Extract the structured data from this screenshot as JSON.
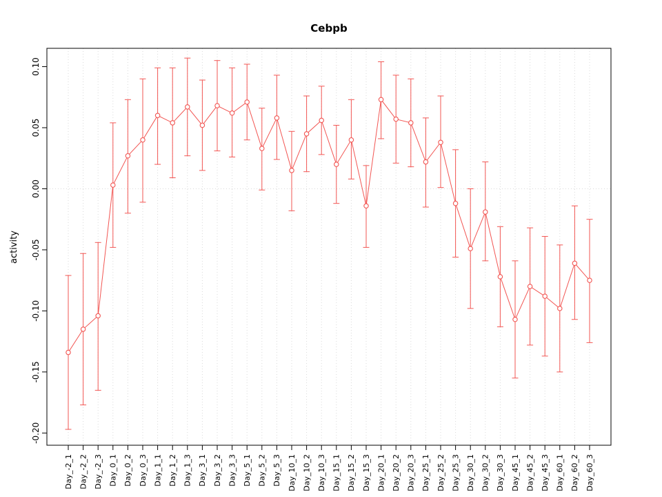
{
  "chart_data": {
    "type": "line",
    "title": "Cebpb",
    "xlabel": "",
    "ylabel": "activity",
    "legend": "none",
    "grid": "vertical dotted gridline at every category; horizontal dotted line at y=0",
    "ylim": [
      -0.21,
      0.115
    ],
    "yticks": [
      -0.2,
      -0.15,
      -0.1,
      -0.05,
      0.0,
      0.05,
      0.1
    ],
    "ytick_labels": [
      "-0.20",
      "-0.15",
      "-0.10",
      "-0.05",
      "0.00",
      "0.05",
      "0.10"
    ],
    "colors": {
      "series": "#f25552",
      "grid": "#d9d9d9",
      "axis": "#000000"
    },
    "categories": [
      "Day_-2_1",
      "Day_-2_2",
      "Day_-2_3",
      "Day_0_1",
      "Day_0_2",
      "Day_0_3",
      "Day_1_1",
      "Day_1_2",
      "Day_1_3",
      "Day_3_1",
      "Day_3_2",
      "Day_3_3",
      "Day_5_1",
      "Day_5_2",
      "Day_5_3",
      "Day_10_1",
      "Day_10_2",
      "Day_10_3",
      "Day_15_1",
      "Day_15_2",
      "Day_15_3",
      "Day_20_1",
      "Day_20_2",
      "Day_20_3",
      "Day_25_1",
      "Day_25_2",
      "Day_25_3",
      "Day_30_1",
      "Day_30_2",
      "Day_30_3",
      "Day_45_1",
      "Day_45_2",
      "Day_45_3",
      "Day_60_1",
      "Day_60_2",
      "Day_60_3"
    ],
    "series": [
      {
        "name": "activity",
        "marker": "open-circle",
        "values": [
          -0.134,
          -0.115,
          -0.104,
          0.003,
          0.027,
          0.04,
          0.06,
          0.054,
          0.067,
          0.052,
          0.068,
          0.062,
          0.071,
          0.033,
          0.058,
          0.015,
          0.045,
          0.056,
          0.02,
          0.04,
          -0.014,
          0.073,
          0.057,
          0.054,
          0.022,
          0.038,
          -0.012,
          -0.049,
          -0.019,
          -0.072,
          -0.107,
          -0.08,
          -0.088,
          -0.098,
          -0.061,
          -0.075
        ],
        "lower": [
          -0.197,
          -0.177,
          -0.165,
          -0.048,
          -0.02,
          -0.011,
          0.02,
          0.009,
          0.027,
          0.015,
          0.031,
          0.026,
          0.04,
          -0.001,
          0.024,
          -0.018,
          0.014,
          0.028,
          -0.012,
          0.008,
          -0.048,
          0.041,
          0.021,
          0.018,
          -0.015,
          0.001,
          -0.056,
          -0.098,
          -0.059,
          -0.113,
          -0.155,
          -0.128,
          -0.137,
          -0.15,
          -0.107,
          -0.126
        ],
        "upper": [
          -0.071,
          -0.053,
          -0.044,
          0.054,
          0.073,
          0.09,
          0.099,
          0.099,
          0.107,
          0.089,
          0.105,
          0.099,
          0.102,
          0.066,
          0.093,
          0.047,
          0.076,
          0.084,
          0.052,
          0.073,
          0.019,
          0.104,
          0.093,
          0.09,
          0.058,
          0.076,
          0.032,
          0.0,
          0.022,
          -0.031,
          -0.059,
          -0.032,
          -0.039,
          -0.046,
          -0.014,
          -0.025
        ]
      }
    ]
  }
}
